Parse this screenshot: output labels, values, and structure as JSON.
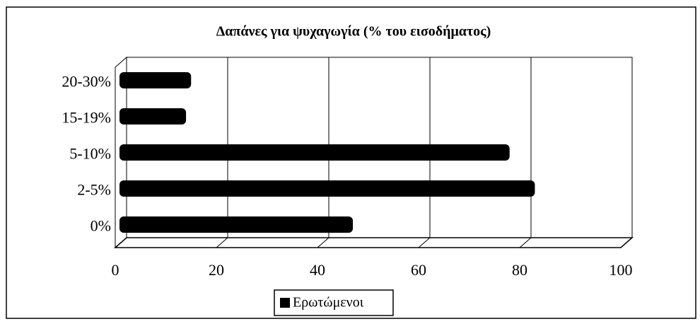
{
  "chart_data": {
    "type": "bar",
    "orientation": "horizontal",
    "title": "Δαπάνες για ψυχαγωγία (% του εισοδήματος)",
    "categories": [
      "0%",
      "2-5%",
      "5-10%",
      "15-19%",
      "20-30%"
    ],
    "series": [
      {
        "name": "Ερωτώμενοι",
        "color": "#000000",
        "values": [
          47,
          83,
          78,
          14,
          15
        ]
      }
    ],
    "xlim": [
      0,
      100
    ],
    "xticks": [
      0,
      20,
      40,
      60,
      80,
      100
    ],
    "grid": true,
    "legend": "bottom"
  }
}
